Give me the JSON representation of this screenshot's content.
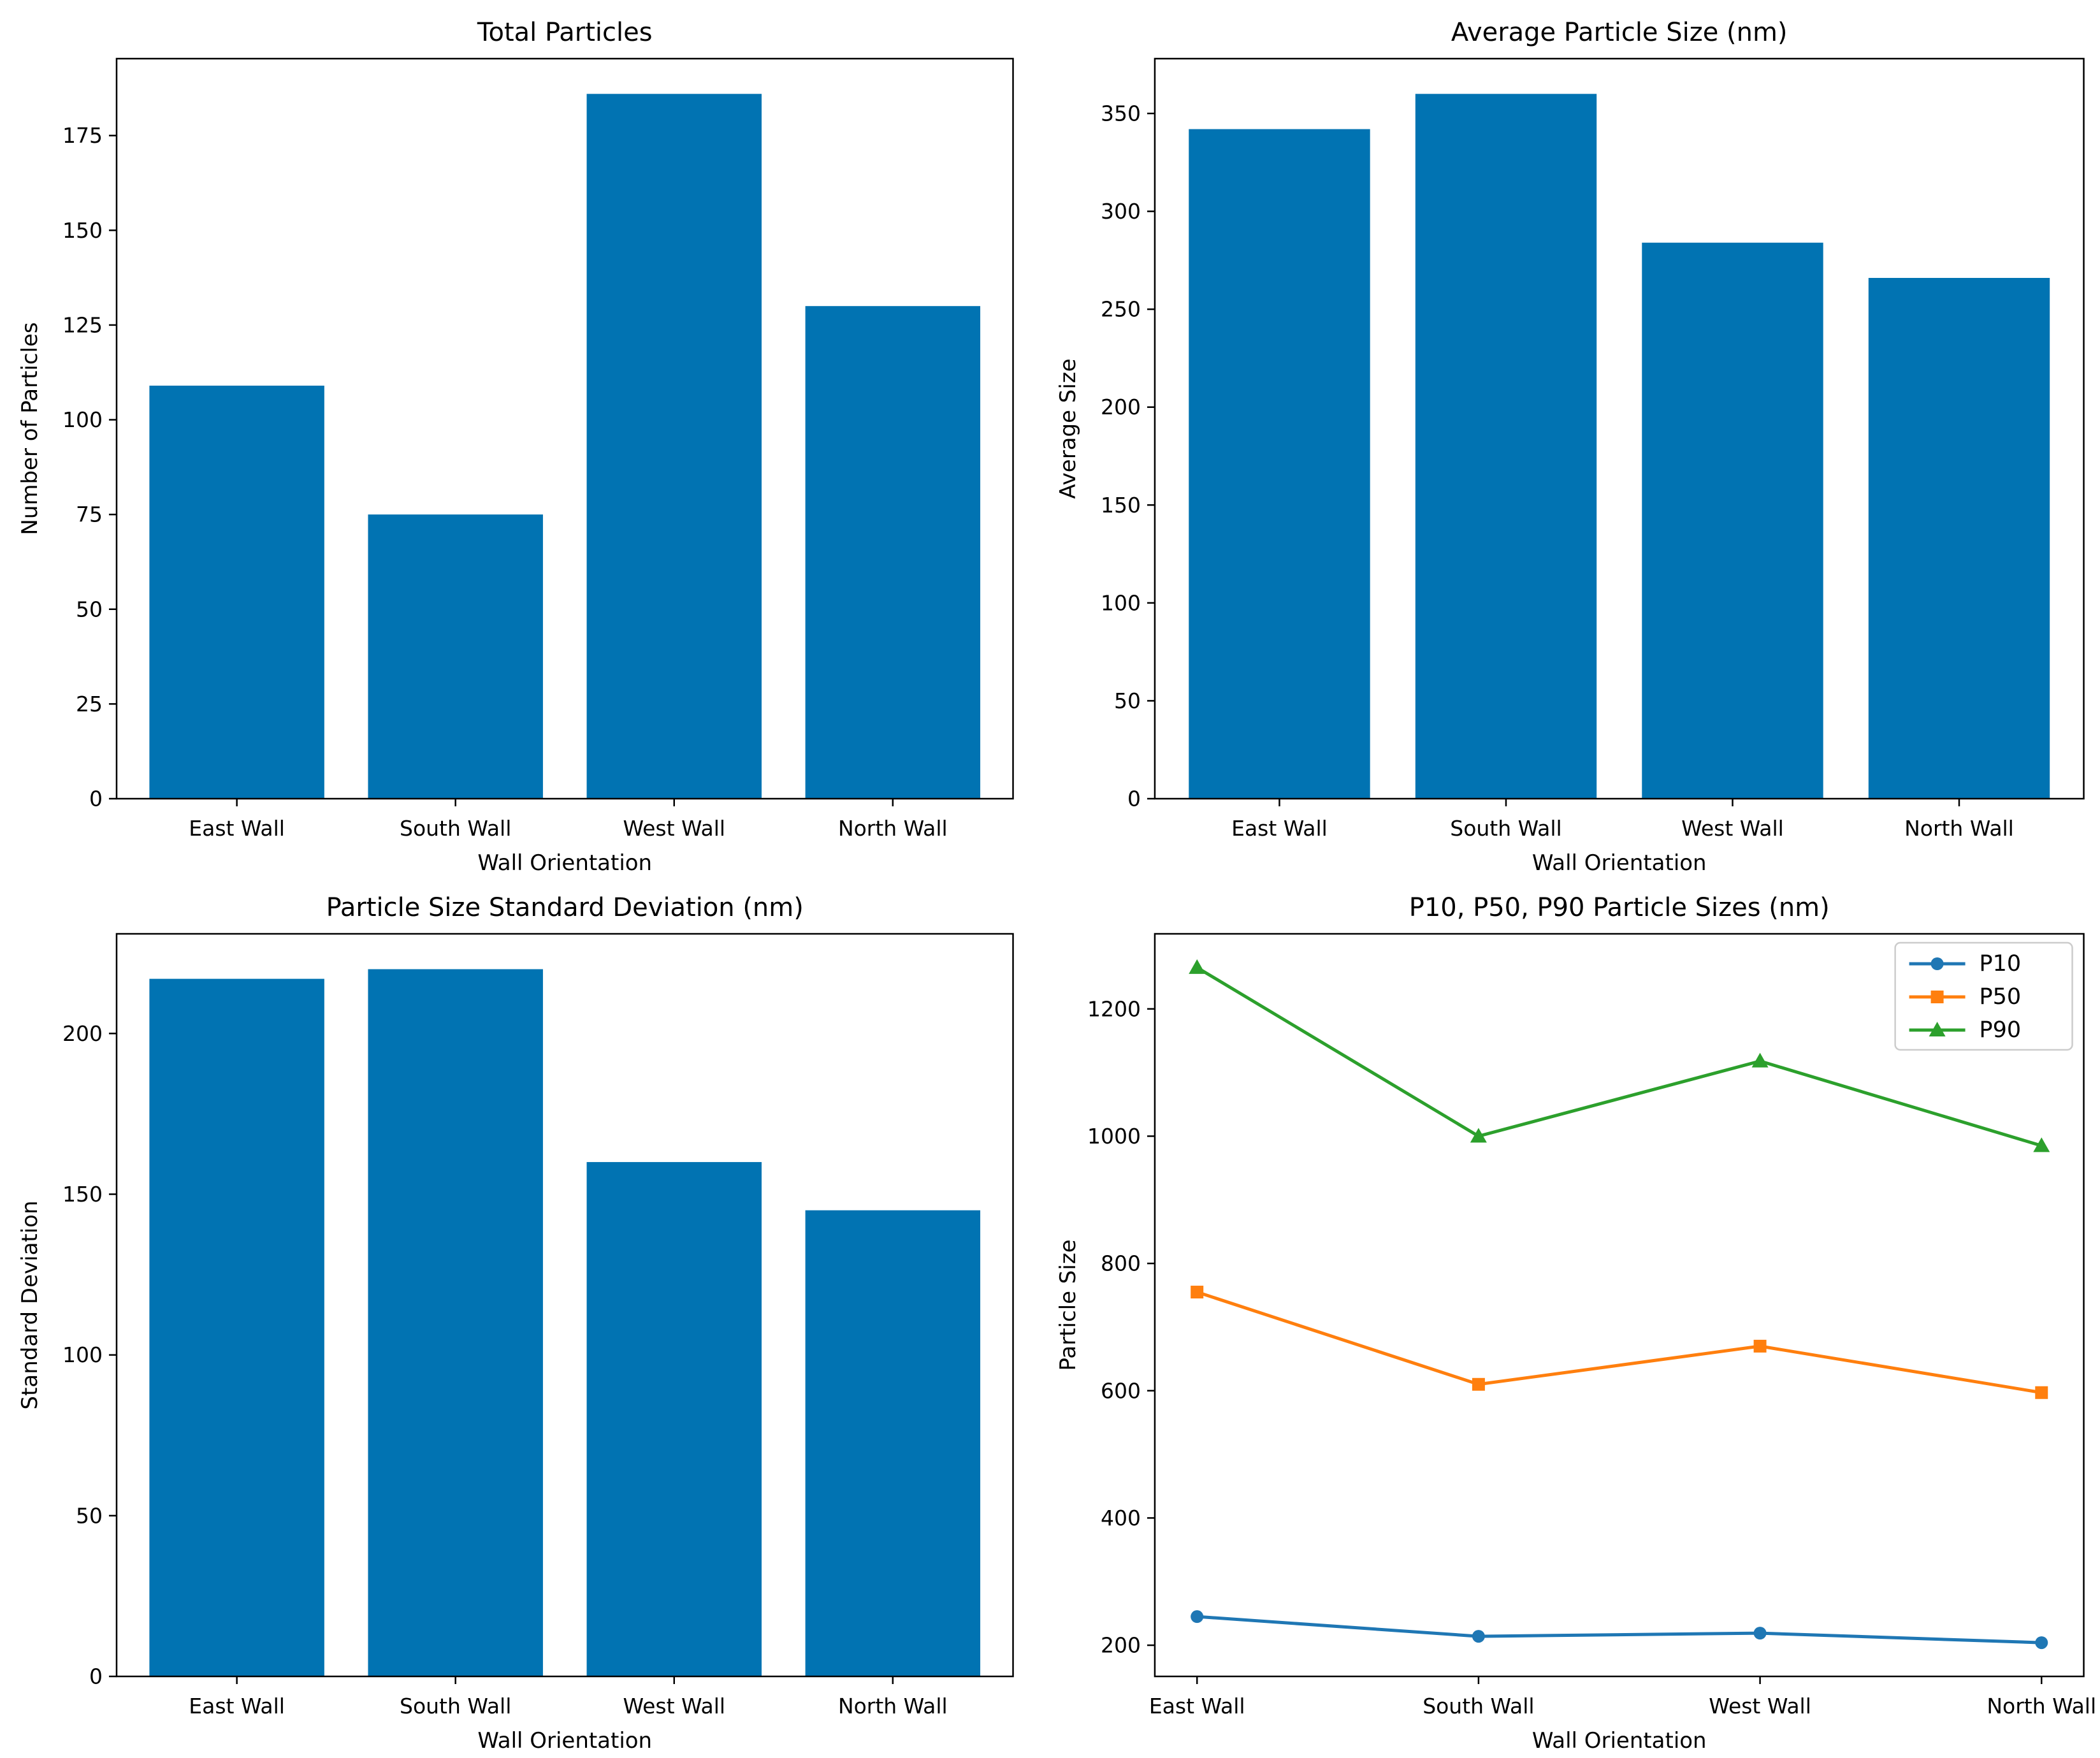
{
  "figure": {
    "background": "#ffffff"
  },
  "colors": {
    "bar_fill": "#0173b2",
    "p10": "#1f77b4",
    "p50": "#ff7f0e",
    "p90": "#2ca02c",
    "axis": "#000000",
    "tick_text": "#000000",
    "legend_border": "#cccccc",
    "legend_background": "#ffffff"
  },
  "chart_data": [
    {
      "type": "bar",
      "title": "Total Particles",
      "xlabel": "Wall Orientation",
      "ylabel": "Number of Particles",
      "categories": [
        "East Wall",
        "South Wall",
        "West Wall",
        "North Wall"
      ],
      "values": [
        109,
        75,
        186,
        130
      ],
      "yticks": [
        0,
        25,
        50,
        75,
        100,
        125,
        150,
        175
      ],
      "ylim": [
        0,
        195.3
      ],
      "grid": false,
      "legend_position": "none"
    },
    {
      "type": "bar",
      "title": "Average Particle Size (nm)",
      "xlabel": "Wall Orientation",
      "ylabel": "Average Size",
      "categories": [
        "East Wall",
        "South Wall",
        "West Wall",
        "North Wall"
      ],
      "values": [
        342,
        360,
        284,
        266
      ],
      "yticks": [
        0,
        50,
        100,
        150,
        200,
        250,
        300,
        350
      ],
      "ylim": [
        0,
        378
      ],
      "grid": false,
      "legend_position": "none"
    },
    {
      "type": "bar",
      "title": "Particle Size Standard Deviation (nm)",
      "xlabel": "Wall Orientation",
      "ylabel": "Standard Deviation",
      "categories": [
        "East Wall",
        "South Wall",
        "West Wall",
        "North Wall"
      ],
      "values": [
        217,
        220,
        160,
        145
      ],
      "yticks": [
        0,
        50,
        100,
        150,
        200
      ],
      "ylim": [
        0,
        231
      ],
      "grid": false,
      "legend_position": "none"
    },
    {
      "type": "line",
      "title": "P10, P50, P90 Particle Sizes (nm)",
      "xlabel": "Wall Orientation",
      "ylabel": "Particle Size",
      "categories": [
        "East Wall",
        "South Wall",
        "West Wall",
        "North Wall"
      ],
      "series": [
        {
          "name": "P10",
          "marker": "circle",
          "color_key": "p10",
          "values": [
            245,
            214,
            219,
            204
          ]
        },
        {
          "name": "P50",
          "marker": "square",
          "color_key": "p50",
          "values": [
            755,
            610,
            670,
            597
          ]
        },
        {
          "name": "P90",
          "marker": "triangle",
          "color_key": "p90",
          "values": [
            1265,
            1000,
            1118,
            985
          ]
        }
      ],
      "yticks": [
        200,
        400,
        600,
        800,
        1000,
        1200
      ],
      "ylim": [
        151,
        1318
      ],
      "grid": false,
      "legend_position": "upper right"
    }
  ]
}
